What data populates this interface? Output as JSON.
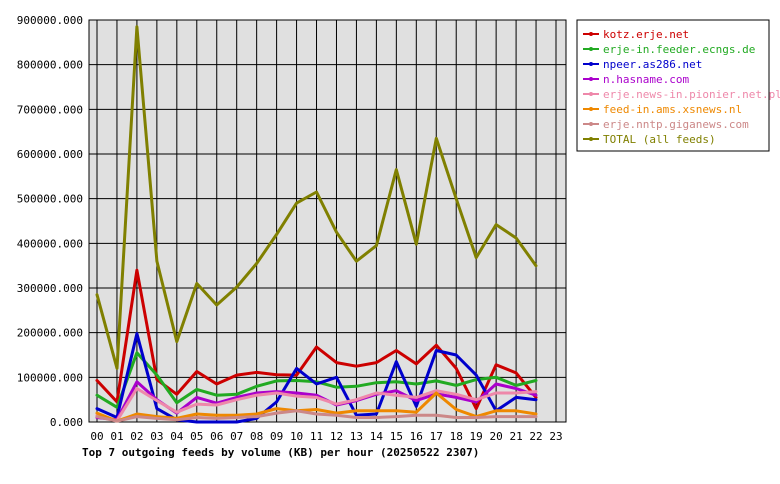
{
  "chart_data": {
    "type": "line",
    "title": "Top 7 outgoing feeds by volume (KB) per hour (20250522 2307)",
    "xlabel": "",
    "ylabel": "",
    "x_ticks": [
      "00",
      "01",
      "02",
      "03",
      "04",
      "05",
      "06",
      "07",
      "08",
      "09",
      "10",
      "11",
      "12",
      "13",
      "14",
      "15",
      "16",
      "17",
      "18",
      "19",
      "20",
      "21",
      "22",
      "23"
    ],
    "y_ticks": [
      "0.000",
      "100000.000",
      "200000.000",
      "300000.000",
      "400000.000",
      "500000.000",
      "600000.000",
      "700000.000",
      "800000.000",
      "900000.000"
    ],
    "ylim": [
      0,
      900000
    ],
    "xlim": [
      0,
      23
    ],
    "grid": true,
    "legend_position": "right",
    "background_color": "#e0e0e0",
    "series": [
      {
        "name": "kotz.erje.net",
        "color": "#cc0000",
        "values": [
          93000,
          45000,
          340000,
          95000,
          62000,
          113000,
          85000,
          105000,
          111000,
          106000,
          105000,
          168000,
          133000,
          125000,
          133000,
          160000,
          130000,
          172000,
          120000,
          30000,
          128000,
          110000,
          55000
        ]
      },
      {
        "name": "erje-in.feeder.ecngs.de",
        "color": "#22aa22",
        "values": [
          60000,
          33000,
          155000,
          105000,
          43000,
          73000,
          60000,
          62000,
          80000,
          92000,
          93000,
          90000,
          78000,
          80000,
          88000,
          90000,
          85000,
          92000,
          82000,
          95000,
          100000,
          82000,
          93000
        ]
      },
      {
        "name": "npeer.as286.net",
        "color": "#0000cc",
        "values": [
          30000,
          10000,
          198000,
          30000,
          5000,
          0,
          0,
          0,
          8000,
          45000,
          120000,
          85000,
          100000,
          15000,
          18000,
          135000,
          35000,
          160000,
          150000,
          105000,
          25000,
          55000,
          50000
        ]
      },
      {
        "name": "n.hasname.com",
        "color": "#aa00cc",
        "values": [
          10000,
          5000,
          90000,
          50000,
          20000,
          55000,
          42000,
          55000,
          65000,
          68000,
          65000,
          60000,
          38000,
          48000,
          62000,
          70000,
          48000,
          63000,
          55000,
          45000,
          85000,
          75000,
          60000
        ]
      },
      {
        "name": "erje.news-in.pionier.net.pl",
        "color": "#ee88aa",
        "values": [
          15000,
          3000,
          75000,
          48000,
          22000,
          40000,
          38000,
          50000,
          60000,
          65000,
          58000,
          55000,
          40000,
          50000,
          65000,
          60000,
          55000,
          70000,
          62000,
          50000,
          65000,
          65000,
          68000
        ]
      },
      {
        "name": "feed-in.ams.xsnews.nl",
        "color": "#ee8800",
        "values": [
          20000,
          2000,
          18000,
          12000,
          8000,
          18000,
          15000,
          15000,
          18000,
          30000,
          25000,
          28000,
          20000,
          25000,
          25000,
          25000,
          22000,
          65000,
          28000,
          12000,
          25000,
          25000,
          18000
        ]
      },
      {
        "name": "erje.nntp.giganews.com",
        "color": "#cc8888",
        "values": [
          12000,
          2000,
          12000,
          8000,
          5000,
          10000,
          8000,
          10000,
          12000,
          20000,
          25000,
          18000,
          15000,
          10000,
          10000,
          12000,
          15000,
          15000,
          10000,
          10000,
          12000,
          12000,
          12000
        ]
      },
      {
        "name": "TOTAL (all feeds)",
        "color": "#808000",
        "values": [
          285000,
          120000,
          885000,
          360000,
          180000,
          310000,
          262000,
          302000,
          355000,
          420000,
          490000,
          515000,
          425000,
          360000,
          395000,
          565000,
          398000,
          635000,
          500000,
          368000,
          442000,
          412000,
          350000
        ]
      }
    ]
  }
}
